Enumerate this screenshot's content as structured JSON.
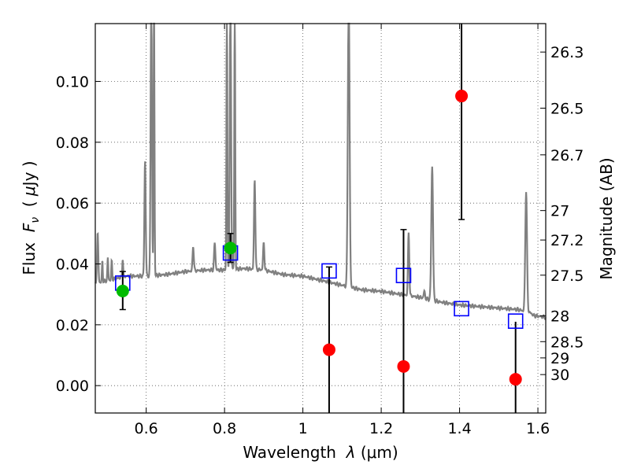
{
  "chart_data": {
    "type": "scatter",
    "xlabel": "Wavelength  λ (μm)",
    "xlabel_parts": {
      "main": "Wavelength  ",
      "sym": "λ",
      "unit": " (μm)"
    },
    "ylabel": "Flux  Fν  ( μJy )",
    "ylabel_parts": {
      "pre": "Flux  ",
      "sym": "F",
      "sub": "ν",
      "mid": "  ( ",
      "mu": "μ",
      "post": "Jy )"
    },
    "ylabel_right": "Magnitude (AB)",
    "xlim": [
      0.47,
      1.62
    ],
    "ylim": [
      -0.009,
      0.119
    ],
    "x_ticks": [
      {
        "v": 0.6,
        "label": "0.6"
      },
      {
        "v": 0.8,
        "label": "0.8"
      },
      {
        "v": 1.0,
        "label": "1"
      },
      {
        "v": 1.2,
        "label": "1.2"
      },
      {
        "v": 1.4,
        "label": "1.4"
      },
      {
        "v": 1.6,
        "label": "1.6"
      }
    ],
    "y_ticks": [
      {
        "v": 0.0,
        "label": "0.00"
      },
      {
        "v": 0.02,
        "label": "0.02"
      },
      {
        "v": 0.04,
        "label": "0.04"
      },
      {
        "v": 0.06,
        "label": "0.06"
      },
      {
        "v": 0.08,
        "label": "0.08"
      },
      {
        "v": 0.1,
        "label": "0.10"
      }
    ],
    "mag_ticks": [
      {
        "mag": 26.3,
        "label": "26.3"
      },
      {
        "mag": 26.5,
        "label": "26.5"
      },
      {
        "mag": 26.7,
        "label": "26.7"
      },
      {
        "mag": 27.0,
        "label": "27"
      },
      {
        "mag": 27.2,
        "label": "27.2"
      },
      {
        "mag": 27.5,
        "label": "27.5"
      },
      {
        "mag": 28.0,
        "label": "28"
      },
      {
        "mag": 28.5,
        "label": "28.5"
      },
      {
        "mag": 29.0,
        "label": "29"
      },
      {
        "mag": 30.0,
        "label": "30"
      }
    ],
    "grid": true,
    "colors": {
      "model": "#808080",
      "observed": "#ff0000",
      "model_photometry": "#0000ff",
      "extra_points": "#00bb00",
      "errorbar": "#000000"
    },
    "model_sed": {
      "continuum": [
        [
          0.47,
          0.0335
        ],
        [
          0.5,
          0.0345
        ],
        [
          0.55,
          0.036
        ],
        [
          0.6,
          0.036
        ],
        [
          0.65,
          0.0365
        ],
        [
          0.7,
          0.0375
        ],
        [
          0.75,
          0.038
        ],
        [
          0.8,
          0.038
        ],
        [
          0.85,
          0.0385
        ],
        [
          0.9,
          0.038
        ],
        [
          0.95,
          0.0365
        ],
        [
          1.0,
          0.036
        ],
        [
          1.05,
          0.0345
        ],
        [
          1.1,
          0.033
        ],
        [
          1.15,
          0.0315
        ],
        [
          1.2,
          0.031
        ],
        [
          1.25,
          0.03
        ],
        [
          1.3,
          0.029
        ],
        [
          1.35,
          0.0275
        ],
        [
          1.4,
          0.0265
        ],
        [
          1.45,
          0.026
        ],
        [
          1.5,
          0.0255
        ],
        [
          1.55,
          0.025
        ],
        [
          1.565,
          0.0245
        ],
        [
          1.58,
          0.024
        ],
        [
          1.59,
          0.023
        ],
        [
          1.62,
          0.0225
        ]
      ],
      "lines": [
        {
          "x": 0.476,
          "peak": 0.05,
          "w": 0.003
        },
        {
          "x": 0.488,
          "peak": 0.041,
          "w": 0.002
        },
        {
          "x": 0.502,
          "peak": 0.042,
          "w": 0.002
        },
        {
          "x": 0.512,
          "peak": 0.041,
          "w": 0.002
        },
        {
          "x": 0.54,
          "peak": 0.042,
          "w": 0.002
        },
        {
          "x": 0.597,
          "peak": 0.074,
          "w": 0.003
        },
        {
          "x": 0.613,
          "peak": 0.13,
          "w": 0.003
        },
        {
          "x": 0.62,
          "peak": 0.13,
          "w": 0.002
        },
        {
          "x": 0.72,
          "peak": 0.046,
          "w": 0.003
        },
        {
          "x": 0.775,
          "peak": 0.047,
          "w": 0.003
        },
        {
          "x": 0.806,
          "peak": 0.13,
          "w": 0.002
        },
        {
          "x": 0.815,
          "peak": 0.13,
          "w": 0.003
        },
        {
          "x": 0.826,
          "peak": 0.13,
          "w": 0.002
        },
        {
          "x": 0.877,
          "peak": 0.068,
          "w": 0.003
        },
        {
          "x": 0.9,
          "peak": 0.047,
          "w": 0.003
        },
        {
          "x": 1.117,
          "peak": 0.13,
          "w": 0.004
        },
        {
          "x": 1.27,
          "peak": 0.05,
          "w": 0.003
        },
        {
          "x": 1.31,
          "peak": 0.031,
          "w": 0.003
        },
        {
          "x": 1.33,
          "peak": 0.072,
          "w": 0.004
        },
        {
          "x": 1.57,
          "peak": 0.064,
          "w": 0.004
        }
      ]
    },
    "series": [
      {
        "name": "observed",
        "marker": "circle",
        "color": "#ff0000",
        "points": [
          {
            "x": 1.067,
            "y": 0.0118
          },
          {
            "x": 1.257,
            "y": 0.0063
          },
          {
            "x": 1.405,
            "y": 0.0952
          },
          {
            "x": 1.543,
            "y": 0.0021
          }
        ]
      },
      {
        "name": "model_photometry",
        "marker": "square",
        "color": "#0000ff",
        "points": [
          {
            "x": 0.54,
            "y": 0.0337
          },
          {
            "x": 0.815,
            "y": 0.0436
          },
          {
            "x": 1.067,
            "y": 0.0377
          },
          {
            "x": 1.257,
            "y": 0.0362
          },
          {
            "x": 1.405,
            "y": 0.0253
          },
          {
            "x": 1.543,
            "y": 0.0212
          }
        ]
      },
      {
        "name": "extra_points",
        "marker": "circle",
        "color": "#00bb00",
        "points": [
          {
            "x": 0.54,
            "y": 0.0311
          },
          {
            "x": 0.815,
            "y": 0.0452
          }
        ]
      }
    ],
    "error_bars": [
      {
        "x": 0.54,
        "low": 0.025,
        "high": 0.0375,
        "caps": true
      },
      {
        "x": 0.815,
        "low": 0.0405,
        "high": 0.05,
        "caps": true
      },
      {
        "x": 1.067,
        "low": -0.009,
        "high": 0.039,
        "caps": true
      },
      {
        "x": 1.257,
        "low": -0.009,
        "high": 0.0513,
        "caps": true
      },
      {
        "x": 1.405,
        "low": 0.0546,
        "high": 0.119,
        "caps": true
      },
      {
        "x": 1.543,
        "low": -0.009,
        "high": 0.021,
        "caps": false
      }
    ]
  }
}
